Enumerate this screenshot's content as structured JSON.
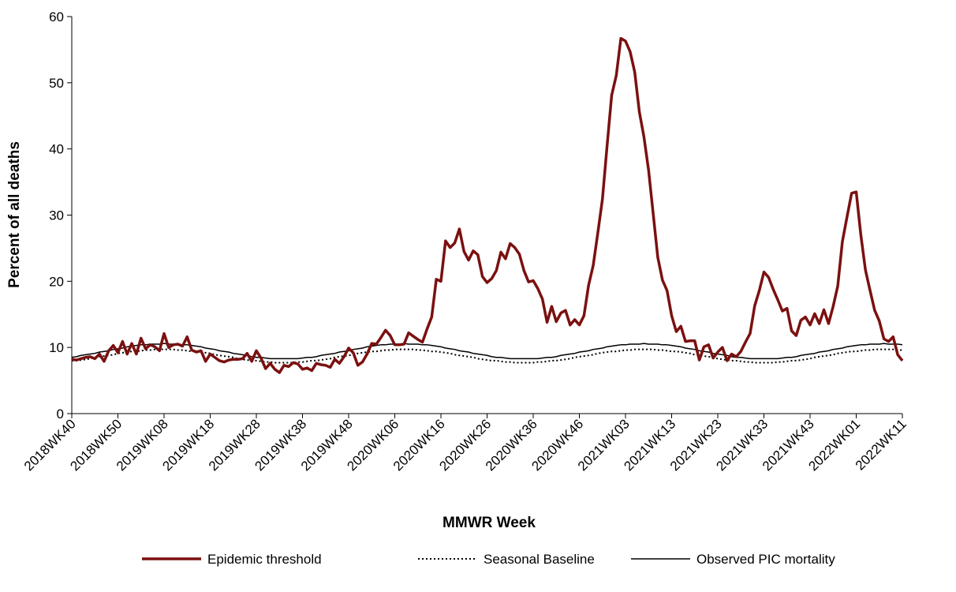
{
  "chart_data": {
    "type": "line",
    "ylabel": "Percent of all deaths",
    "xlabel": "MMWR Week",
    "ylim": [
      0,
      60
    ],
    "yticks": [
      0,
      10,
      20,
      30,
      40,
      50,
      60
    ],
    "categories": [
      "2018WK40",
      null,
      null,
      null,
      null,
      null,
      null,
      null,
      null,
      null,
      "2018WK50",
      null,
      null,
      null,
      null,
      null,
      null,
      null,
      null,
      null,
      "2019WK08",
      null,
      null,
      null,
      null,
      null,
      null,
      null,
      null,
      null,
      "2019WK18",
      null,
      null,
      null,
      null,
      null,
      null,
      null,
      null,
      null,
      "2019WK28",
      null,
      null,
      null,
      null,
      null,
      null,
      null,
      null,
      null,
      "2019WK38",
      null,
      null,
      null,
      null,
      null,
      null,
      null,
      null,
      null,
      "2019WK48",
      null,
      null,
      null,
      null,
      null,
      null,
      null,
      null,
      null,
      "2020WK06",
      null,
      null,
      null,
      null,
      null,
      null,
      null,
      null,
      null,
      "2020WK16",
      null,
      null,
      null,
      null,
      null,
      null,
      null,
      null,
      null,
      "2020WK26",
      null,
      null,
      null,
      null,
      null,
      null,
      null,
      null,
      null,
      "2020WK36",
      null,
      null,
      null,
      null,
      null,
      null,
      null,
      null,
      null,
      "2020WK46",
      null,
      null,
      null,
      null,
      null,
      null,
      null,
      null,
      null,
      "2021WK03",
      null,
      null,
      null,
      null,
      null,
      null,
      null,
      null,
      null,
      "2021WK13",
      null,
      null,
      null,
      null,
      null,
      null,
      null,
      null,
      null,
      "2021WK23",
      null,
      null,
      null,
      null,
      null,
      null,
      null,
      null,
      null,
      "2021WK33",
      null,
      null,
      null,
      null,
      null,
      null,
      null,
      null,
      null,
      "2021WK43",
      null,
      null,
      null,
      null,
      null,
      null,
      null,
      null,
      null,
      "2022WK01",
      null,
      null,
      null,
      null,
      null,
      null,
      null,
      null,
      null,
      "2022WK11"
    ],
    "series": [
      {
        "name": "Epidemic threshold",
        "color": "#7b1010",
        "line_style": "solid",
        "values": [
          8.2,
          8.1,
          8.3,
          8.5,
          8.6,
          8.3,
          9.0,
          7.9,
          9.5,
          10.3,
          9.2,
          10.9,
          9.0,
          10.6,
          9.0,
          11.4,
          9.8,
          10.4,
          10.1,
          9.5,
          12.1,
          10.0,
          10.4,
          10.5,
          10.2,
          11.6,
          9.6,
          9.3,
          9.5,
          7.9,
          9.0,
          8.5,
          8.0,
          7.8,
          8.1,
          8.2,
          8.2,
          8.3,
          9.1,
          7.9,
          9.5,
          8.4,
          6.8,
          7.6,
          6.7,
          6.2,
          7.3,
          7.1,
          7.7,
          7.5,
          6.7,
          6.9,
          6.5,
          7.6,
          7.4,
          7.3,
          7.0,
          8.2,
          7.6,
          8.6,
          9.9,
          9.2,
          7.3,
          7.8,
          9.0,
          10.6,
          10.5,
          11.5,
          12.6,
          11.8,
          10.4,
          10.4,
          10.5,
          12.2,
          11.7,
          11.2,
          10.8,
          12.8,
          14.6,
          20.3,
          20.0,
          26.1,
          25.1,
          25.8,
          27.9,
          24.5,
          23.2,
          24.6,
          24.0,
          20.7,
          19.8,
          20.4,
          21.6,
          24.4,
          23.4,
          25.7,
          25.1,
          24.1,
          21.6,
          19.9,
          20.1,
          18.9,
          17.3,
          13.8,
          16.2,
          13.9,
          15.2,
          15.6,
          13.4,
          14.2,
          13.4,
          14.8,
          19.4,
          22.4,
          27.3,
          32.4,
          40.4,
          48.1,
          51.1,
          56.7,
          56.3,
          54.7,
          51.6,
          45.6,
          41.8,
          36.8,
          30.2,
          23.6,
          20.2,
          18.6,
          14.8,
          12.4,
          13.2,
          10.9,
          11.0,
          11.0,
          8.1,
          10.1,
          10.4,
          8.4,
          9.3,
          10.0,
          8.0,
          9.0,
          8.6,
          9.4,
          10.8,
          12.1,
          16.3,
          18.6,
          21.4,
          20.6,
          18.8,
          17.2,
          15.5,
          15.9,
          12.5,
          11.8,
          14.1,
          14.6,
          13.4,
          15.1,
          13.6,
          15.7,
          13.6,
          16.2,
          19.3,
          26.0,
          29.7,
          33.3,
          33.5,
          27.0,
          21.7,
          18.6,
          15.6,
          14.0,
          11.3,
          10.9,
          11.6,
          8.9,
          8.0
        ]
      },
      {
        "name": "Seasonal Baseline",
        "color": "#000000",
        "line_style": "dotted",
        "values": [
          8.0,
          8.0,
          8.1,
          8.2,
          8.3,
          8.5,
          8.6,
          8.7,
          8.8,
          8.9,
          9.1,
          9.2,
          9.3,
          9.4,
          9.4,
          9.5,
          9.6,
          9.6,
          9.7,
          9.7,
          9.7,
          9.7,
          9.7,
          9.6,
          9.6,
          9.5,
          9.4,
          9.4,
          9.3,
          9.2,
          9.1,
          8.9,
          8.8,
          8.7,
          8.6,
          8.5,
          8.3,
          8.2,
          8.1,
          8.0,
          8.0,
          7.9,
          7.8,
          7.8,
          7.7,
          7.7,
          7.7,
          7.7,
          7.7,
          7.8,
          7.8,
          7.9,
          8.0,
          8.0,
          8.1,
          8.2,
          8.3,
          8.5,
          8.6,
          8.7,
          8.8,
          8.9,
          9.1,
          9.2,
          9.3,
          9.4,
          9.4,
          9.5,
          9.6,
          9.6,
          9.7,
          9.7,
          9.7,
          9.7,
          9.7,
          9.6,
          9.6,
          9.5,
          9.4,
          9.4,
          9.3,
          9.2,
          9.1,
          8.9,
          8.8,
          8.7,
          8.6,
          8.5,
          8.3,
          8.2,
          8.1,
          8.0,
          8.0,
          7.9,
          7.8,
          7.8,
          7.7,
          7.7,
          7.7,
          7.7,
          7.7,
          7.8,
          7.8,
          7.9,
          8.0,
          8.0,
          8.1,
          8.2,
          8.3,
          8.5,
          8.6,
          8.7,
          8.8,
          8.9,
          9.1,
          9.2,
          9.3,
          9.4,
          9.4,
          9.5,
          9.6,
          9.6,
          9.7,
          9.7,
          9.7,
          9.7,
          9.7,
          9.6,
          9.6,
          9.5,
          9.4,
          9.4,
          9.3,
          9.2,
          9.1,
          8.9,
          8.8,
          8.7,
          8.6,
          8.5,
          8.3,
          8.2,
          8.1,
          8.0,
          8.0,
          7.9,
          7.8,
          7.8,
          7.7,
          7.7,
          7.7,
          7.7,
          7.7,
          7.8,
          7.8,
          7.9,
          8.0,
          8.0,
          8.1,
          8.2,
          8.3,
          8.5,
          8.6,
          8.7,
          8.8,
          8.9,
          9.1,
          9.2,
          9.3,
          9.4,
          9.4,
          9.5,
          9.6,
          9.6,
          9.7,
          9.7,
          9.7,
          9.7,
          9.7,
          9.6,
          9.6
        ]
      },
      {
        "name": "Observed PIC mortality",
        "color": "#000000",
        "line_style": "solid",
        "values": [
          8.5,
          8.6,
          8.8,
          8.9,
          9.0,
          9.1,
          9.3,
          9.4,
          9.5,
          9.7,
          9.8,
          9.9,
          10.1,
          10.2,
          10.3,
          10.4,
          10.4,
          10.5,
          10.5,
          10.5,
          10.6,
          10.5,
          10.5,
          10.5,
          10.4,
          10.4,
          10.3,
          10.2,
          10.1,
          9.9,
          9.8,
          9.7,
          9.5,
          9.4,
          9.3,
          9.1,
          9.0,
          8.9,
          8.8,
          8.6,
          8.5,
          8.5,
          8.4,
          8.3,
          8.3,
          8.3,
          8.3,
          8.3,
          8.3,
          8.3,
          8.4,
          8.5,
          8.5,
          8.6,
          8.8,
          8.9,
          9.0,
          9.1,
          9.3,
          9.4,
          9.5,
          9.7,
          9.8,
          9.9,
          10.1,
          10.2,
          10.3,
          10.4,
          10.4,
          10.5,
          10.5,
          10.5,
          10.6,
          10.5,
          10.5,
          10.5,
          10.4,
          10.4,
          10.3,
          10.2,
          10.1,
          9.9,
          9.8,
          9.7,
          9.5,
          9.4,
          9.3,
          9.1,
          9.0,
          8.9,
          8.8,
          8.6,
          8.5,
          8.5,
          8.4,
          8.3,
          8.3,
          8.3,
          8.3,
          8.3,
          8.3,
          8.3,
          8.4,
          8.5,
          8.5,
          8.6,
          8.8,
          8.9,
          9.0,
          9.1,
          9.3,
          9.4,
          9.5,
          9.7,
          9.8,
          9.9,
          10.1,
          10.2,
          10.3,
          10.4,
          10.4,
          10.5,
          10.5,
          10.5,
          10.6,
          10.5,
          10.5,
          10.5,
          10.4,
          10.4,
          10.3,
          10.2,
          10.1,
          9.9,
          9.8,
          9.7,
          9.5,
          9.4,
          9.3,
          9.1,
          9.0,
          8.9,
          8.8,
          8.6,
          8.5,
          8.5,
          8.4,
          8.3,
          8.3,
          8.3,
          8.3,
          8.3,
          8.3,
          8.3,
          8.4,
          8.5,
          8.5,
          8.6,
          8.8,
          8.9,
          9.0,
          9.1,
          9.3,
          9.4,
          9.5,
          9.7,
          9.8,
          9.9,
          10.1,
          10.2,
          10.3,
          10.4,
          10.4,
          10.5,
          10.5,
          10.5,
          10.6,
          10.5,
          10.5,
          10.5,
          10.4
        ]
      }
    ]
  }
}
